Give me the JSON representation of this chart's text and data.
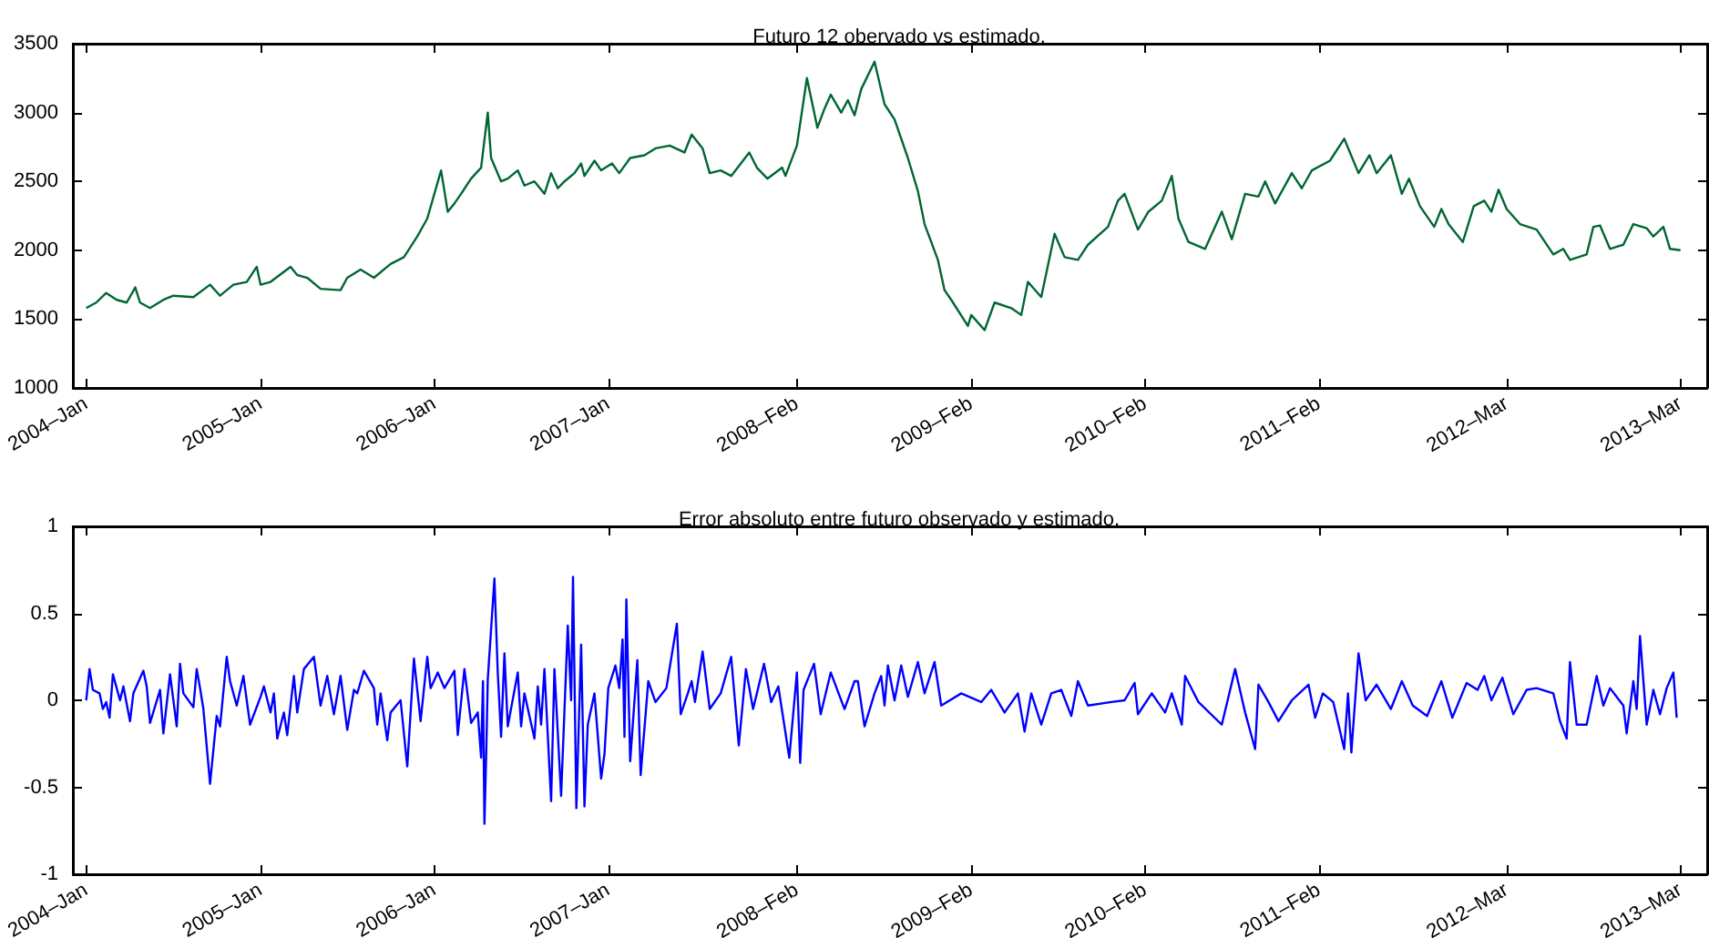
{
  "chart_data": [
    {
      "type": "line",
      "title": "Futuro 12 obervado vs estimado.",
      "xlim": [
        "2003-12-04",
        "2013-04-26"
      ],
      "xticks": [
        {
          "value": "2004-01-01",
          "label": "2004–Jan"
        },
        {
          "value": "2005-01-01",
          "label": "2005–Jan"
        },
        {
          "value": "2006-01-01",
          "label": "2006–Jan"
        },
        {
          "value": "2007-01-01",
          "label": "2007–Jan"
        },
        {
          "value": "2008-02-01",
          "label": "2008–Feb"
        },
        {
          "value": "2009-02-01",
          "label": "2009–Feb"
        },
        {
          "value": "2010-02-01",
          "label": "2010–Feb"
        },
        {
          "value": "2011-02-01",
          "label": "2011–Feb"
        },
        {
          "value": "2012-03-01",
          "label": "2012–Mar"
        },
        {
          "value": "2013-03-01",
          "label": "2013–Mar"
        }
      ],
      "ylim": [
        1000,
        3500
      ],
      "yticks": [
        1000,
        1500,
        2000,
        2500,
        3000,
        3500
      ],
      "grid": false,
      "marker": "none",
      "series": [
        {
          "color": "#006633",
          "x": [
            "2004-01-01",
            "2004-01-22",
            "2004-02-12",
            "2004-03-05",
            "2004-03-26",
            "2004-04-13",
            "2004-04-23",
            "2004-05-14",
            "2004-06-11",
            "2004-07-02",
            "2004-08-13",
            "2004-09-17",
            "2004-10-08",
            "2004-11-05",
            "2004-12-03",
            "2004-12-24",
            "2005-01-01",
            "2005-01-22",
            "2005-03-05",
            "2005-03-19",
            "2005-04-09",
            "2005-05-07",
            "2005-06-18",
            "2005-07-02",
            "2005-07-30",
            "2005-08-27",
            "2005-10-01",
            "2005-10-29",
            "2005-11-26",
            "2005-12-17",
            "2006-01-15",
            "2006-01-29",
            "2006-02-12",
            "2006-02-26",
            "2006-03-19",
            "2006-04-09",
            "2006-04-23",
            "2006-04-30",
            "2006-05-21",
            "2006-06-04",
            "2006-06-25",
            "2006-07-09",
            "2006-07-30",
            "2006-08-20",
            "2006-09-03",
            "2006-09-17",
            "2006-10-01",
            "2006-10-22",
            "2006-11-05",
            "2006-11-12",
            "2006-12-03",
            "2006-12-17",
            "2007-01-09",
            "2007-01-24",
            "2007-02-16",
            "2007-03-18",
            "2007-04-10",
            "2007-05-10",
            "2007-06-10",
            "2007-06-25",
            "2007-07-18",
            "2007-08-02",
            "2007-08-25",
            "2007-09-16",
            "2007-10-24",
            "2007-11-09",
            "2007-12-01",
            "2008-01-01",
            "2008-01-08",
            "2008-02-01",
            "2008-02-22",
            "2008-03-15",
            "2008-03-29",
            "2008-04-12",
            "2008-05-04",
            "2008-05-18",
            "2008-06-01",
            "2008-06-15",
            "2008-07-13",
            "2008-08-03",
            "2008-08-24",
            "2008-09-21",
            "2008-10-12",
            "2008-10-26",
            "2008-11-23",
            "2008-12-07",
            "2008-12-21",
            "2009-01-25",
            "2009-02-01",
            "2009-03-01",
            "2009-03-22",
            "2009-04-26",
            "2009-05-17",
            "2009-05-31",
            "2009-06-28",
            "2009-07-26",
            "2009-08-16",
            "2009-09-13",
            "2009-10-04",
            "2009-11-15",
            "2009-12-06",
            "2009-12-20",
            "2010-01-17",
            "2010-02-08",
            "2010-03-08",
            "2010-03-29",
            "2010-04-12",
            "2010-05-03",
            "2010-06-07",
            "2010-07-12",
            "2010-08-02",
            "2010-08-30",
            "2010-09-27",
            "2010-10-11",
            "2010-11-01",
            "2010-12-06",
            "2010-12-27",
            "2011-01-17",
            "2011-02-24",
            "2011-03-26",
            "2011-04-25",
            "2011-05-18",
            "2011-06-02",
            "2011-07-02",
            "2011-07-25",
            "2011-08-09",
            "2011-09-01",
            "2011-10-01",
            "2011-10-16",
            "2011-10-31",
            "2011-11-30",
            "2011-12-23",
            "2012-01-14",
            "2012-01-29",
            "2012-02-13",
            "2012-03-01",
            "2012-03-29",
            "2012-05-03",
            "2012-06-07",
            "2012-06-28",
            "2012-07-12",
            "2012-08-16",
            "2012-08-30",
            "2012-09-13",
            "2012-10-04",
            "2012-11-01",
            "2012-11-22",
            "2012-12-20",
            "2013-01-03",
            "2013-01-24",
            "2013-02-07",
            "2013-03-01"
          ],
          "values": [
            1580,
            1620,
            1690,
            1640,
            1620,
            1730,
            1620,
            1580,
            1640,
            1670,
            1660,
            1750,
            1670,
            1750,
            1770,
            1880,
            1750,
            1770,
            1880,
            1820,
            1800,
            1720,
            1710,
            1800,
            1860,
            1800,
            1900,
            1950,
            2100,
            2230,
            2580,
            2280,
            2340,
            2410,
            2520,
            2600,
            3000,
            2670,
            2500,
            2520,
            2580,
            2470,
            2500,
            2410,
            2560,
            2450,
            2500,
            2560,
            2630,
            2540,
            2650,
            2580,
            2630,
            2560,
            2670,
            2690,
            2740,
            2760,
            2710,
            2840,
            2740,
            2560,
            2580,
            2540,
            2710,
            2600,
            2520,
            2600,
            2540,
            2760,
            3250,
            2890,
            3020,
            3130,
            3000,
            3090,
            2980,
            3170,
            3370,
            3060,
            2950,
            2670,
            2430,
            2190,
            1930,
            1710,
            1640,
            1450,
            1530,
            1420,
            1620,
            1580,
            1530,
            1770,
            1660,
            2120,
            1950,
            1930,
            2040,
            2170,
            2360,
            2410,
            2150,
            2280,
            2360,
            2540,
            2230,
            2060,
            2010,
            2280,
            2080,
            2410,
            2390,
            2500,
            2340,
            2560,
            2450,
            2580,
            2650,
            2810,
            2560,
            2690,
            2560,
            2690,
            2410,
            2520,
            2320,
            2170,
            2300,
            2190,
            2060,
            2320,
            2360,
            2280,
            2440,
            2300,
            2190,
            2150,
            1970,
            2010,
            1930,
            1970,
            2170,
            2180,
            2010,
            2040,
            2190,
            2160,
            2100,
            2170,
            2010,
            2000
          ]
        }
      ]
    },
    {
      "type": "line",
      "title": "Error absoluto entre futuro observado y estimado.",
      "xlim": [
        "2003-12-04",
        "2013-04-26"
      ],
      "xticks": [
        {
          "value": "2004-01-01",
          "label": "2004–Jan"
        },
        {
          "value": "2005-01-01",
          "label": "2005–Jan"
        },
        {
          "value": "2006-01-01",
          "label": "2006–Jan"
        },
        {
          "value": "2007-01-01",
          "label": "2007–Jan"
        },
        {
          "value": "2008-02-01",
          "label": "2008–Feb"
        },
        {
          "value": "2009-02-01",
          "label": "2009–Feb"
        },
        {
          "value": "2010-02-01",
          "label": "2010–Feb"
        },
        {
          "value": "2011-02-01",
          "label": "2011–Feb"
        },
        {
          "value": "2012-03-01",
          "label": "2012–Mar"
        },
        {
          "value": "2013-03-01",
          "label": "2013–Mar"
        }
      ],
      "ylim": [
        -1,
        1
      ],
      "yticks": [
        -1,
        -0.5,
        0,
        0.5,
        1
      ],
      "grid": false,
      "marker": "none",
      "series": [
        {
          "color": "#0000ff",
          "x": [
            "2004-01-01",
            "2004-01-08",
            "2004-01-15",
            "2004-01-29",
            "2004-02-05",
            "2004-02-12",
            "2004-02-19",
            "2004-02-26",
            "2004-03-12",
            "2004-03-19",
            "2004-04-02",
            "2004-04-09",
            "2004-04-30",
            "2004-05-07",
            "2004-05-14",
            "2004-06-04",
            "2004-06-11",
            "2004-06-25",
            "2004-07-09",
            "2004-07-16",
            "2004-07-23",
            "2004-08-13",
            "2004-08-20",
            "2004-08-27",
            "2004-09-03",
            "2004-09-17",
            "2004-10-01",
            "2004-10-08",
            "2004-10-22",
            "2004-10-29",
            "2004-11-12",
            "2004-11-26",
            "2004-12-10",
            "2005-01-01",
            "2005-01-08",
            "2005-01-22",
            "2005-01-29",
            "2005-02-05",
            "2005-02-19",
            "2005-02-26",
            "2005-03-12",
            "2005-03-19",
            "2005-04-02",
            "2005-04-23",
            "2005-05-07",
            "2005-05-21",
            "2005-06-04",
            "2005-06-18",
            "2005-07-02",
            "2005-07-16",
            "2005-07-23",
            "2005-08-06",
            "2005-08-27",
            "2005-09-03",
            "2005-09-10",
            "2005-09-24",
            "2005-10-01",
            "2005-10-22",
            "2005-11-05",
            "2005-11-19",
            "2005-12-03",
            "2005-12-17",
            "2005-12-24",
            "2006-01-08",
            "2006-01-22",
            "2006-02-12",
            "2006-02-19",
            "2006-03-05",
            "2006-03-19",
            "2006-04-02",
            "2006-04-09",
            "2006-04-13",
            "2006-04-16",
            "2006-04-20",
            "2006-04-23",
            "2006-05-07",
            "2006-05-14",
            "2006-05-21",
            "2006-05-28",
            "2006-06-04",
            "2006-06-25",
            "2006-07-02",
            "2006-07-09",
            "2006-07-30",
            "2006-08-06",
            "2006-08-13",
            "2006-08-20",
            "2006-09-03",
            "2006-09-10",
            "2006-09-24",
            "2006-10-08",
            "2006-10-15",
            "2006-10-19",
            "2006-10-26",
            "2006-11-05",
            "2006-11-12",
            "2006-11-19",
            "2006-12-03",
            "2006-12-17",
            "2006-12-24",
            "2007-01-01",
            "2007-01-16",
            "2007-01-24",
            "2007-01-31",
            "2007-02-04",
            "2007-02-08",
            "2007-02-16",
            "2007-03-03",
            "2007-03-10",
            "2007-03-26",
            "2007-04-10",
            "2007-05-03",
            "2007-05-25",
            "2007-06-02",
            "2007-06-17",
            "2007-06-25",
            "2007-07-02",
            "2007-07-18",
            "2007-08-02",
            "2007-08-25",
            "2007-09-16",
            "2007-10-02",
            "2007-10-17",
            "2007-11-01",
            "2007-11-24",
            "2007-12-09",
            "2007-12-24",
            "2008-01-16",
            "2008-02-01",
            "2008-02-08",
            "2008-02-15",
            "2008-03-08",
            "2008-03-22",
            "2008-04-12",
            "2008-05-11",
            "2008-06-01",
            "2008-06-08",
            "2008-06-22",
            "2008-07-13",
            "2008-07-27",
            "2008-08-03",
            "2008-08-10",
            "2008-08-24",
            "2008-09-07",
            "2008-09-21",
            "2008-10-12",
            "2008-10-26",
            "2008-11-16",
            "2008-11-30",
            "2009-01-11",
            "2009-02-22",
            "2009-03-15",
            "2009-04-12",
            "2009-05-10",
            "2009-05-24",
            "2009-06-07",
            "2009-06-28",
            "2009-07-19",
            "2009-08-09",
            "2009-08-30",
            "2009-09-13",
            "2009-10-04",
            "2009-11-22",
            "2009-12-20",
            "2010-01-10",
            "2010-01-17",
            "2010-02-15",
            "2010-03-15",
            "2010-03-29",
            "2010-04-19",
            "2010-04-26",
            "2010-05-24",
            "2010-07-12",
            "2010-08-09",
            "2010-08-30",
            "2010-09-20",
            "2010-09-27",
            "2010-10-18",
            "2010-11-08",
            "2010-12-06",
            "2011-01-10",
            "2011-01-24",
            "2011-02-09",
            "2011-03-03",
            "2011-03-26",
            "2011-04-03",
            "2011-04-10",
            "2011-04-25",
            "2011-05-10",
            "2011-06-02",
            "2011-07-02",
            "2011-07-25",
            "2011-08-17",
            "2011-09-16",
            "2011-10-16",
            "2011-11-08",
            "2011-12-08",
            "2011-12-31",
            "2012-01-14",
            "2012-01-29",
            "2012-02-21",
            "2012-03-15",
            "2012-04-12",
            "2012-05-03",
            "2012-06-07",
            "2012-06-21",
            "2012-07-05",
            "2012-07-12",
            "2012-07-26",
            "2012-08-16",
            "2012-09-06",
            "2012-09-20",
            "2012-10-04",
            "2012-11-01",
            "2012-11-08",
            "2012-11-22",
            "2012-11-29",
            "2012-12-06",
            "2012-12-20",
            "2013-01-03",
            "2013-01-17",
            "2013-01-31",
            "2013-02-14",
            "2013-02-21"
          ],
          "values": [
            0,
            0.18,
            0.06,
            0.04,
            -0.05,
            -0.01,
            -0.1,
            0.15,
            0,
            0.08,
            -0.12,
            0.04,
            0.17,
            0.08,
            -0.13,
            0.06,
            -0.19,
            0.15,
            -0.15,
            0.21,
            0.04,
            -0.04,
            0.18,
            0.07,
            -0.05,
            -0.48,
            -0.09,
            -0.15,
            0.25,
            0.11,
            -0.03,
            0.14,
            -0.14,
            0.02,
            0.08,
            -0.07,
            0.04,
            -0.22,
            -0.07,
            -0.2,
            0.14,
            -0.07,
            0.18,
            0.25,
            -0.03,
            0.14,
            -0.08,
            0.14,
            -0.17,
            0.06,
            0.04,
            0.17,
            0.07,
            -0.14,
            0.04,
            -0.23,
            -0.07,
            0,
            -0.38,
            0.24,
            -0.12,
            0.25,
            0.07,
            0.16,
            0.07,
            0.17,
            -0.2,
            0.18,
            -0.13,
            -0.07,
            -0.33,
            0.11,
            -0.71,
            -0.28,
            0.12,
            0.7,
            0.16,
            -0.21,
            0.27,
            -0.15,
            0.16,
            -0.15,
            0.04,
            -0.22,
            0.08,
            -0.14,
            0.18,
            -0.58,
            0.18,
            -0.55,
            0.43,
            0,
            0.71,
            -0.62,
            0.32,
            -0.61,
            -0.14,
            0.04,
            -0.45,
            -0.31,
            0.07,
            0.2,
            0.07,
            0.35,
            -0.21,
            0.58,
            -0.35,
            0.23,
            -0.43,
            0.11,
            -0.01,
            0.07,
            0.44,
            -0.08,
            0.04,
            0.11,
            -0.01,
            0.28,
            -0.05,
            0.04,
            0.25,
            -0.26,
            0.18,
            -0.05,
            0.21,
            -0.01,
            0.08,
            -0.33,
            0.16,
            -0.36,
            0.06,
            0.21,
            -0.08,
            0.16,
            -0.05,
            0.11,
            0.11,
            -0.15,
            0.04,
            0.14,
            -0.03,
            0.2,
            0,
            0.2,
            0.02,
            0.22,
            0.04,
            0.22,
            -0.03,
            0.04,
            -0.01,
            0.06,
            -0.07,
            0.04,
            -0.18,
            0.04,
            -0.14,
            0.04,
            0.06,
            -0.09,
            0.11,
            -0.03,
            -0.01,
            0,
            0.1,
            -0.08,
            0.04,
            -0.07,
            0.04,
            -0.14,
            0.14,
            -0.01,
            -0.14,
            0.18,
            -0.07,
            -0.28,
            0.09,
            -0.01,
            -0.12,
            0,
            0.09,
            -0.1,
            0.04,
            -0.01,
            -0.28,
            0.04,
            -0.3,
            0.27,
            0,
            0.09,
            -0.05,
            0.11,
            -0.03,
            -0.09,
            0.11,
            -0.1,
            0.1,
            0.06,
            0.14,
            0,
            0.13,
            -0.08,
            0.06,
            0.07,
            0.04,
            -0.12,
            -0.22,
            0.22,
            -0.14,
            -0.14,
            0.14,
            -0.03,
            0.07,
            -0.03,
            -0.19,
            0.11,
            -0.05,
            0.37,
            -0.14,
            0.06,
            -0.08,
            0.07,
            0.16,
            -0.1
          ]
        }
      ]
    }
  ]
}
